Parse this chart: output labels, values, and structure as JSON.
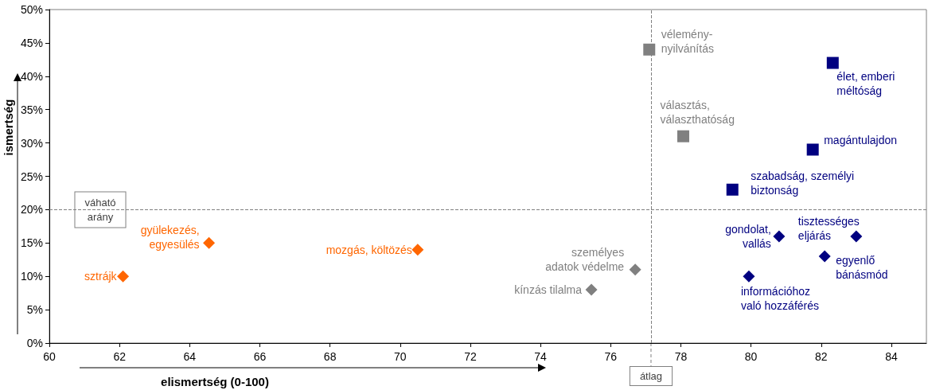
{
  "chart_data": {
    "type": "scatter",
    "xlabel": "elismertség (0-100)",
    "ylabel": "ismertség",
    "xlim": [
      60,
      85
    ],
    "xticks": [
      60,
      62,
      64,
      66,
      68,
      70,
      72,
      74,
      76,
      78,
      80,
      82,
      84
    ],
    "ylim": [
      0,
      50
    ],
    "yticks": [
      {
        "value": 0,
        "label": "0%"
      },
      {
        "value": 5,
        "label": "5%"
      },
      {
        "value": 10,
        "label": "10%"
      },
      {
        "value": 15,
        "label": "15%"
      },
      {
        "value": 20,
        "label": "20%"
      },
      {
        "value": 25,
        "label": "25%"
      },
      {
        "value": 30,
        "label": "30%"
      },
      {
        "value": 35,
        "label": "35%"
      },
      {
        "value": 40,
        "label": "40%"
      },
      {
        "value": 45,
        "label": "45%"
      },
      {
        "value": 50,
        "label": "50%"
      }
    ],
    "grid": false,
    "series": [
      {
        "color": "#ff6600",
        "marker": "diamond",
        "x": [
          62.1,
          64.55,
          70.5
        ],
        "values": [
          10,
          15,
          14
        ]
      },
      {
        "color": "#808080",
        "marker": "diamond",
        "x": [
          75.45,
          76.7
        ],
        "values": [
          8,
          11
        ]
      },
      {
        "color": "#808080",
        "marker": "square",
        "x": [
          77.1,
          78.07
        ],
        "values": [
          44,
          31
        ]
      },
      {
        "color": "#000080",
        "marker": "square",
        "x": [
          82.33,
          81.76,
          79.47
        ],
        "values": [
          42,
          29,
          23
        ]
      },
      {
        "color": "#000080",
        "marker": "diamond",
        "x": [
          80.8,
          83.0,
          82.1,
          79.94
        ],
        "values": [
          16,
          16,
          13,
          10
        ]
      }
    ],
    "ref_lines": [
      {
        "axis": "x",
        "value": 77.15,
        "label": "átlag",
        "color": "#808080",
        "line_style": "dashed"
      },
      {
        "axis": "y",
        "value": 20,
        "label": "váható\narány",
        "color": "#808080",
        "line_style": "dashed"
      }
    ],
    "annotations": [
      {
        "text": "sztrájk",
        "x": 62.1,
        "y": 10
      },
      {
        "text": "gyülekezés,\negyesülés",
        "x": 64.55,
        "y": 15
      },
      {
        "text": "mozgás, költözés",
        "x": 70.5,
        "y": 14
      },
      {
        "text": "kínzás tilalma",
        "x": 75.45,
        "y": 8
      },
      {
        "text": "személyes\nadatok védelme",
        "x": 76.7,
        "y": 11
      },
      {
        "text": "vélemény-\nnyilvánítás",
        "x": 77.1,
        "y": 44
      },
      {
        "text": "választás,\nválaszthatóság",
        "x": 78.07,
        "y": 31
      },
      {
        "text": "élet, emberi\nméltóság",
        "x": 82.33,
        "y": 42
      },
      {
        "text": "magántulajdon",
        "x": 81.76,
        "y": 29
      },
      {
        "text": "szabadság, személyi\nbiztonság",
        "x": 79.47,
        "y": 23
      },
      {
        "text": "gondolat,\nvallás",
        "x": 80.8,
        "y": 16
      },
      {
        "text": "tisztességes\neljárás",
        "x": 83.0,
        "y": 16
      },
      {
        "text": "egyenlő\nbánásmód",
        "x": 82.1,
        "y": 13
      },
      {
        "text": "információhoz\nvaló hozzáférés",
        "x": 79.94,
        "y": 10
      }
    ]
  }
}
